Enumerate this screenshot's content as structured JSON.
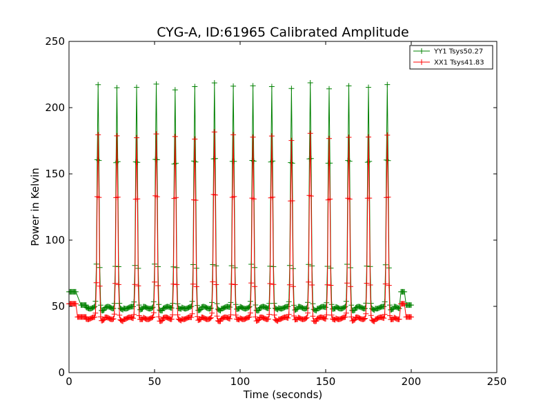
{
  "chart_data": {
    "type": "line",
    "title": "CYG-A, ID:61965 Calibrated Amplitude",
    "xlabel": "Time (seconds)",
    "ylabel": "Power in Kelvin",
    "xlim": [
      0,
      250
    ],
    "ylim": [
      0,
      250
    ],
    "xticks": [
      "0",
      "50",
      "100",
      "150",
      "200",
      "250"
    ],
    "yticks": [
      "0",
      "50",
      "100",
      "150",
      "200",
      "250"
    ],
    "grid": false,
    "legend_position": "top-right",
    "pulse_times": [
      17,
      28,
      39.5,
      51,
      62,
      73.5,
      85,
      96,
      107.5,
      118.5,
      130,
      141,
      152,
      163.5,
      175,
      186
    ],
    "series": [
      {
        "name": "YY1 Tsys50.27",
        "color": "#008000",
        "marker": "+",
        "baseline": 49,
        "peaks": [
          217,
          215,
          216,
          217,
          214,
          216,
          218,
          217,
          216,
          216,
          215,
          218,
          215,
          216,
          215,
          218
        ],
        "cal_segments": [
          {
            "x": [
              0,
              4
            ],
            "y": 61
          },
          {
            "x": [
              7,
              10
            ],
            "y": 51
          },
          {
            "x": [
              194,
              196
            ],
            "y": 61
          },
          {
            "x": [
              197,
              200
            ],
            "y": 51
          }
        ]
      },
      {
        "name": "XX1 Tsys41.83",
        "color": "#ff0000",
        "marker": "+",
        "baseline": 41,
        "peaks": [
          180,
          178,
          178,
          180,
          178,
          177,
          181,
          180,
          178,
          178,
          176,
          180,
          177,
          178,
          177,
          180
        ],
        "cal_segments": [
          {
            "x": [
              0,
              4
            ],
            "y": 52
          },
          {
            "x": [
              5,
              10
            ],
            "y": 42
          },
          {
            "x": [
              194,
              196
            ],
            "y": 52
          },
          {
            "x": [
              197,
              200
            ],
            "y": 42
          }
        ]
      }
    ]
  }
}
